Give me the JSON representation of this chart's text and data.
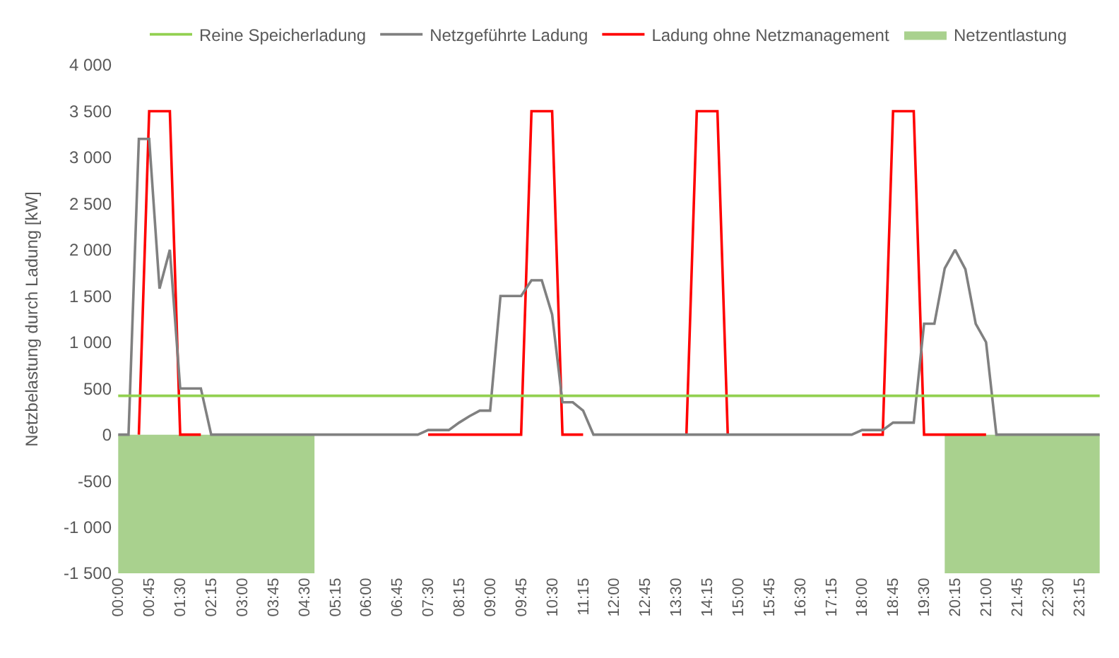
{
  "chart_data": {
    "type": "line",
    "ylabel": "Netzbelastung durch Ladung [kW]",
    "categories": [
      "00:00",
      null,
      null,
      "00:45",
      null,
      null,
      "01:30",
      null,
      null,
      "02:15",
      null,
      null,
      "03:00",
      null,
      null,
      "03:45",
      null,
      null,
      "04:30",
      null,
      null,
      "05:15",
      null,
      null,
      "06:00",
      null,
      null,
      "06:45",
      null,
      null,
      "07:30",
      null,
      null,
      "08:15",
      null,
      null,
      "09:00",
      null,
      null,
      "09:45",
      null,
      null,
      "10:30",
      null,
      null,
      "11:15",
      null,
      null,
      "12:00",
      null,
      null,
      "12:45",
      null,
      null,
      "13:30",
      null,
      null,
      "14:15",
      null,
      null,
      "15:00",
      null,
      null,
      "15:45",
      null,
      null,
      "16:30",
      null,
      null,
      "17:15",
      null,
      null,
      "18:00",
      null,
      null,
      "18:45",
      null,
      null,
      "19:30",
      null,
      null,
      "20:15",
      null,
      null,
      "21:00",
      null,
      null,
      "21:45",
      null,
      null,
      "22:30",
      null,
      null,
      "23:15",
      null,
      null
    ],
    "series": [
      {
        "name": "Netzentlastung",
        "type": "area",
        "color": "#a9d18e",
        "values": [
          -1500,
          -1500,
          -1500,
          -1500,
          -1500,
          -1500,
          -1500,
          -1500,
          -1500,
          -1500,
          -1500,
          -1500,
          -1500,
          -1500,
          -1500,
          -1500,
          -1500,
          -1500,
          -1500,
          -1500,
          null,
          null,
          null,
          null,
          null,
          null,
          null,
          null,
          null,
          null,
          null,
          null,
          null,
          null,
          null,
          null,
          null,
          null,
          null,
          null,
          null,
          null,
          null,
          null,
          null,
          null,
          null,
          null,
          null,
          null,
          null,
          null,
          null,
          null,
          null,
          null,
          null,
          null,
          null,
          null,
          null,
          null,
          null,
          null,
          null,
          null,
          null,
          null,
          null,
          null,
          null,
          null,
          null,
          null,
          null,
          null,
          null,
          null,
          null,
          null,
          -1500,
          -1500,
          -1500,
          -1500,
          -1500,
          -1500,
          -1500,
          -1500,
          -1500,
          -1500,
          -1500,
          -1500,
          -1500,
          -1500,
          -1500,
          -1500
        ]
      },
      {
        "name": "Ladung ohne Netzmanagement",
        "color": "#ff0000",
        "values": [
          null,
          null,
          0,
          3500,
          3500,
          3500,
          0,
          0,
          0,
          null,
          null,
          null,
          null,
          null,
          null,
          null,
          null,
          null,
          null,
          null,
          null,
          null,
          null,
          null,
          null,
          null,
          null,
          null,
          null,
          null,
          0,
          0,
          0,
          0,
          0,
          0,
          0,
          0,
          0,
          0,
          3500,
          3500,
          3500,
          0,
          0,
          0,
          null,
          null,
          null,
          null,
          null,
          null,
          null,
          null,
          null,
          0,
          3500,
          3500,
          3500,
          0,
          null,
          null,
          null,
          null,
          null,
          null,
          null,
          null,
          null,
          null,
          null,
          null,
          0,
          0,
          0,
          3500,
          3500,
          3500,
          0,
          0,
          0,
          0,
          0,
          0,
          0,
          null,
          null,
          null,
          null,
          null,
          null,
          null,
          null,
          null,
          null,
          null
        ]
      },
      {
        "name": "Netzgeführte Ladung",
        "color": "#808080",
        "values": [
          0,
          0,
          3200,
          3200,
          1580,
          2000,
          500,
          500,
          500,
          0,
          0,
          0,
          0,
          0,
          0,
          0,
          0,
          0,
          0,
          0,
          0,
          0,
          0,
          0,
          0,
          0,
          0,
          0,
          0,
          0,
          50,
          50,
          50,
          130,
          200,
          260,
          260,
          1500,
          1500,
          1500,
          1670,
          1670,
          1300,
          350,
          350,
          260,
          0,
          0,
          0,
          0,
          0,
          0,
          0,
          0,
          0,
          0,
          0,
          0,
          0,
          0,
          0,
          0,
          0,
          0,
          0,
          0,
          0,
          0,
          0,
          0,
          0,
          0,
          50,
          50,
          50,
          130,
          130,
          130,
          1200,
          1200,
          1800,
          2000,
          1790,
          1200,
          1000,
          0,
          0,
          0,
          0,
          0,
          0,
          0,
          0,
          0,
          0,
          0
        ]
      },
      {
        "name": "Reine Speicherladung",
        "color": "#92d050",
        "values": [
          420,
          420,
          420,
          420,
          420,
          420,
          420,
          420,
          420,
          420,
          420,
          420,
          420,
          420,
          420,
          420,
          420,
          420,
          420,
          420,
          420,
          420,
          420,
          420,
          420,
          420,
          420,
          420,
          420,
          420,
          420,
          420,
          420,
          420,
          420,
          420,
          420,
          420,
          420,
          420,
          420,
          420,
          420,
          420,
          420,
          420,
          420,
          420,
          420,
          420,
          420,
          420,
          420,
          420,
          420,
          420,
          420,
          420,
          420,
          420,
          420,
          420,
          420,
          420,
          420,
          420,
          420,
          420,
          420,
          420,
          420,
          420,
          420,
          420,
          420,
          420,
          420,
          420,
          420,
          420,
          420,
          420,
          420,
          420,
          420,
          420,
          420,
          420,
          420,
          420,
          420,
          420,
          420,
          420,
          420,
          420
        ]
      }
    ],
    "ylim": [
      -1500,
      4000
    ],
    "yticks": [
      {
        "value": -1500,
        "label": "-1 500"
      },
      {
        "value": -1000,
        "label": "-1 000"
      },
      -500,
      0,
      500,
      {
        "value": 1000,
        "label": "1 000"
      },
      {
        "value": 1500,
        "label": "1 500"
      },
      {
        "value": 2000,
        "label": "2 000"
      },
      {
        "value": 2500,
        "label": "2 500"
      },
      {
        "value": 3000,
        "label": "3 000"
      },
      {
        "value": 3500,
        "label": "3 500"
      },
      {
        "value": 4000,
        "label": "4 000"
      }
    ],
    "grid": false,
    "legend": "top",
    "marker": "none"
  }
}
